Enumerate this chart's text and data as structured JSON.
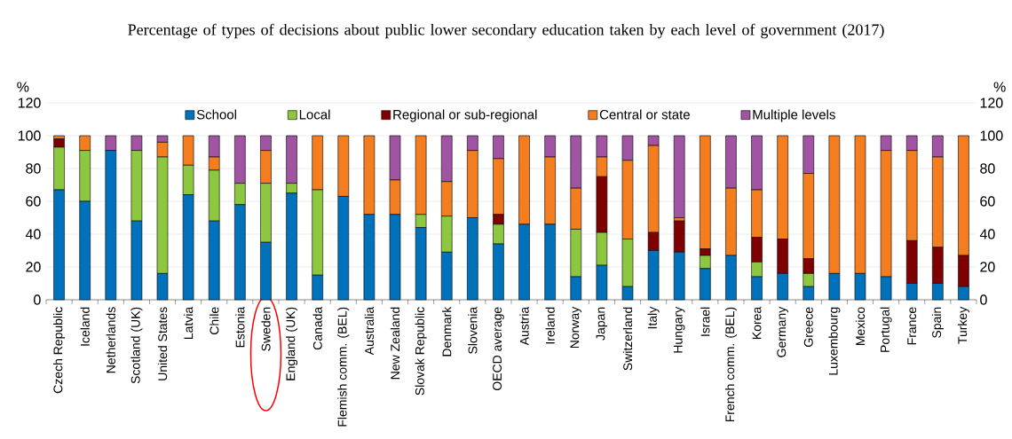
{
  "chart_data": {
    "type": "bar",
    "stacked": true,
    "title": "Percentage of types of decisions about public lower secondary education taken by each level of government (2017)",
    "ylabel": "%",
    "y2label": "%",
    "categories": [
      "Czech Republic",
      "Iceland",
      "Netherlands",
      "Scotland (UK)",
      "United States",
      "Latvia",
      "Chile",
      "Estonia",
      "Sweden",
      "England (UK)",
      "Canada",
      "Flemish comm. (BEL)",
      "Australia",
      "New Zealand",
      "Slovak Republic",
      "Denmark",
      "Slovenia",
      "OECD average",
      "Austria",
      "Ireland",
      "Norway",
      "Japan",
      "Switzerland",
      "Italy",
      "Hungary",
      "Israel",
      "French comm. (BEL)",
      "Korea",
      "Germany",
      "Greece",
      "Luxembourg",
      "Mexico",
      "Portugal",
      "France",
      "Spain",
      "Turkey"
    ],
    "series": [
      {
        "name": "School",
        "color": "#0072bc",
        "values": [
          67,
          60,
          91,
          48,
          16,
          64,
          48,
          58,
          35,
          65,
          15,
          63,
          52,
          52,
          44,
          29,
          50,
          34,
          46,
          46,
          14,
          21,
          8,
          30,
          29,
          19,
          27,
          14,
          16,
          8,
          16,
          16,
          14,
          10,
          10,
          8
        ]
      },
      {
        "name": "Local",
        "color": "#8dc63f",
        "values": [
          26,
          31,
          0,
          43,
          71,
          18,
          31,
          13,
          36,
          6,
          52,
          0,
          0,
          0,
          8,
          22,
          0,
          12,
          0,
          0,
          29,
          20,
          29,
          0,
          0,
          8,
          0,
          9,
          0,
          8,
          0,
          0,
          0,
          0,
          0,
          0
        ]
      },
      {
        "name": "Regional or sub-regional",
        "color": "#7f0000",
        "values": [
          5,
          0,
          0,
          0,
          0,
          0,
          0,
          0,
          0,
          0,
          0,
          0,
          0,
          0,
          0,
          0,
          0,
          6,
          0,
          0,
          0,
          34,
          0,
          11,
          19,
          4,
          0,
          15,
          21,
          9,
          0,
          0,
          0,
          26,
          22,
          19
        ]
      },
      {
        "name": "Central or state",
        "color": "#f47d20",
        "values": [
          2,
          9,
          0,
          0,
          9,
          18,
          8,
          0,
          20,
          0,
          33,
          37,
          48,
          21,
          48,
          21,
          41,
          34,
          54,
          41,
          25,
          12,
          48,
          53,
          2,
          69,
          41,
          29,
          63,
          52,
          84,
          84,
          77,
          55,
          55,
          73
        ]
      },
      {
        "name": "Multiple levels",
        "color": "#a154a1",
        "values": [
          0,
          0,
          9,
          9,
          4,
          0,
          13,
          29,
          9,
          29,
          0,
          0,
          0,
          27,
          0,
          28,
          9,
          14,
          0,
          13,
          32,
          13,
          15,
          6,
          50,
          0,
          32,
          33,
          0,
          23,
          0,
          0,
          9,
          9,
          13,
          0
        ]
      }
    ],
    "ylim": [
      0,
      120
    ],
    "yticks": [
      0,
      20,
      40,
      60,
      80,
      100,
      120
    ],
    "y2lim": [
      0,
      120
    ],
    "y2ticks": [
      0,
      20,
      40,
      60,
      80,
      100,
      120
    ],
    "grid": "y",
    "legend": "top"
  }
}
